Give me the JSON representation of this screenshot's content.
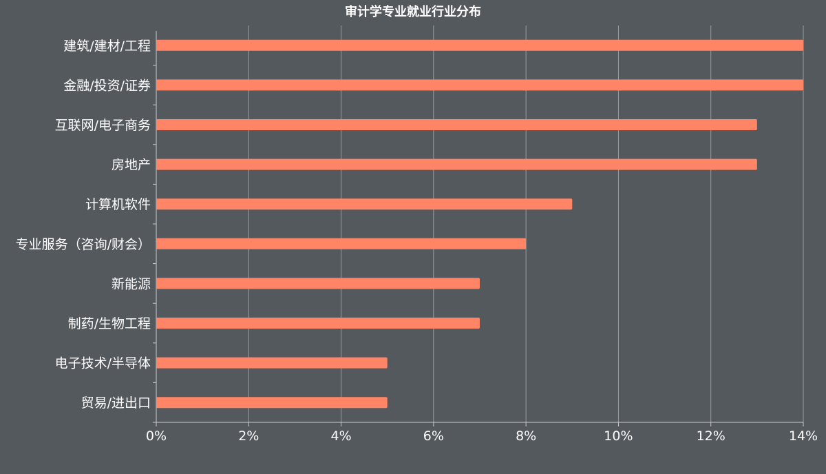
{
  "chart_data": {
    "type": "bar",
    "orientation": "horizontal",
    "title": "审计学专业就业行业分布",
    "categories": [
      "建筑/建材/工程",
      "金融/投资/证券",
      "互联网/电子商务",
      "房地产",
      "计算机软件",
      "专业服务（咨询/财会）",
      "新能源",
      "制药/生物工程",
      "电子技术/半导体",
      "贸易/进出口"
    ],
    "values": [
      14,
      14,
      13,
      13,
      9,
      8,
      7,
      7,
      5,
      5
    ],
    "value_unit": "%",
    "xlim": [
      0,
      14
    ],
    "xticks": [
      "0%",
      "2%",
      "4%",
      "6%",
      "8%",
      "10%",
      "12%",
      "14%"
    ],
    "xlabel": "",
    "ylabel": "",
    "grid": "vertical",
    "legend": "none",
    "colors": {
      "background": "#54595d",
      "bar": "#ff8566",
      "text": "#ffffff",
      "grid": "#9a9ea1"
    }
  }
}
